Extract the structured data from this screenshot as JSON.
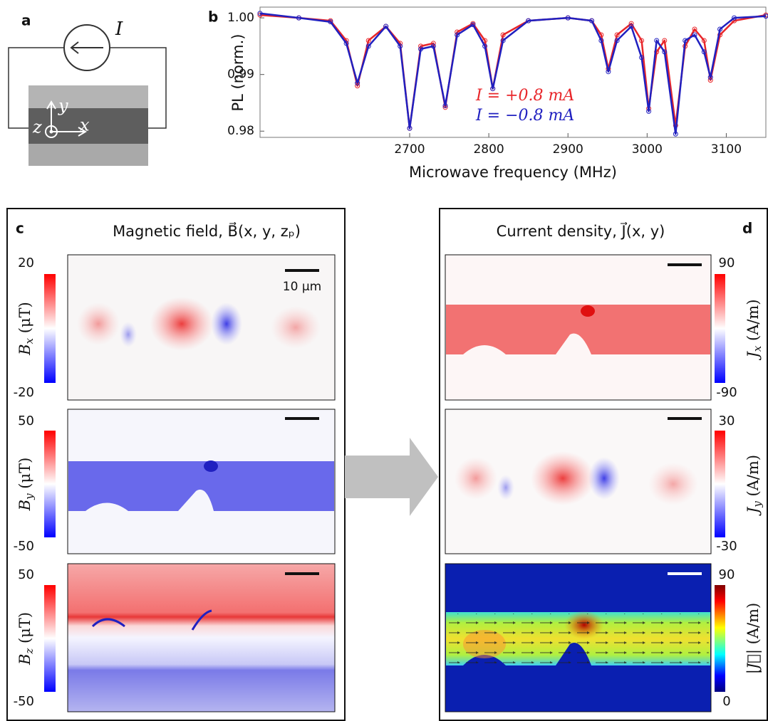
{
  "panel_labels": [
    "a",
    "b",
    "c",
    "d"
  ],
  "circuit": {
    "current": "I",
    "axis_x": "x",
    "axis_y": "y",
    "axis_z": "z"
  },
  "chart_data": {
    "type": "line",
    "xlabel": "Microwave frequency (MHz)",
    "ylabel": "PL (norm.)",
    "x": [
      2511,
      2560,
      2600,
      2620,
      2634,
      2648,
      2670,
      2688,
      2700,
      2714,
      2730,
      2745,
      2760,
      2780,
      2795,
      2805,
      2818,
      2850,
      2900,
      2930,
      2942,
      2951,
      2962,
      2980,
      2993,
      3002,
      3012,
      3022,
      3036,
      3048,
      3060,
      3072,
      3080,
      3092,
      3110,
      3150
    ],
    "series": [
      {
        "name": "I = +0.8 mA",
        "color": "#e8262a",
        "values": [
          1.0005,
          1.0,
          0.9995,
          0.996,
          0.988,
          0.996,
          0.9985,
          0.9955,
          0.9805,
          0.995,
          0.9955,
          0.9842,
          0.9975,
          0.999,
          0.996,
          0.9875,
          0.997,
          0.9995,
          1.0,
          0.9995,
          0.997,
          0.991,
          0.997,
          0.999,
          0.996,
          0.984,
          0.994,
          0.996,
          0.981,
          0.995,
          0.998,
          0.996,
          0.989,
          0.997,
          0.9995,
          1.0005
        ]
      },
      {
        "name": "I = −0.8 mA",
        "color": "#2020c0",
        "values": [
          1.0008,
          1.0,
          0.9993,
          0.9955,
          0.9885,
          0.995,
          0.9985,
          0.995,
          0.9805,
          0.9945,
          0.995,
          0.9845,
          0.997,
          0.9988,
          0.995,
          0.9875,
          0.996,
          0.9995,
          1.0,
          0.9995,
          0.996,
          0.9905,
          0.996,
          0.9985,
          0.993,
          0.9835,
          0.996,
          0.994,
          0.9795,
          0.996,
          0.997,
          0.994,
          0.9895,
          0.998,
          1.0,
          1.0003
        ]
      }
    ],
    "xlim": [
      2511,
      3150
    ],
    "ylim": [
      0.9789,
      1.0019
    ],
    "xticks": [
      2700,
      2800,
      2900,
      3000,
      3100
    ],
    "yticks": [
      0.98,
      0.99,
      {
        "value": 1,
        "label": "1.00"
      }
    ]
  },
  "panel_c": {
    "title": "Magnetic field,  B⃗(x, y, zₚ)",
    "scale_bar": "10 μm",
    "maps": [
      {
        "symbol": "B",
        "subscript": "x",
        "unit": " (μT)",
        "max": 20,
        "min": -20
      },
      {
        "symbol": "B",
        "subscript": "y",
        "unit": " (μT)",
        "max": 50,
        "min": -50
      },
      {
        "symbol": "B",
        "subscript": "z",
        "unit": " (μT)",
        "max": 50,
        "min": -50
      }
    ]
  },
  "panel_d": {
    "title": "Current density,  J⃗(x, y)",
    "maps": [
      {
        "symbol": "J",
        "subscript": "x",
        "unit": " (A/m)",
        "max": 90,
        "min": -90
      },
      {
        "symbol": "J",
        "subscript": "y",
        "unit": " (A/m)",
        "max": 30,
        "min": -30
      },
      {
        "symbol": "|J⃗|",
        "unit": " (A/m)",
        "max": 90,
        "min": 0
      }
    ]
  }
}
